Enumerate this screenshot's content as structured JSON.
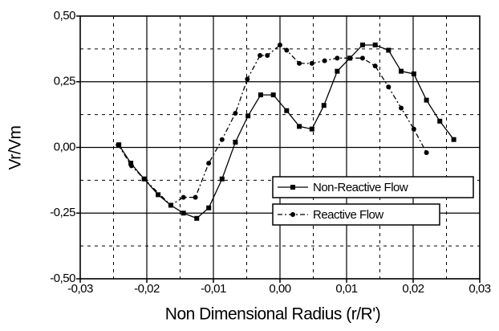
{
  "chart_data": {
    "type": "line",
    "xlabel": "Non Dimensional Radius (r/R')",
    "ylabel": "Vr/Vm",
    "xlim": [
      -0.03,
      0.03
    ],
    "ylim": [
      -0.5,
      0.5
    ],
    "xticks": [
      {
        "value": -0.03,
        "label": "-0,03"
      },
      {
        "value": -0.02,
        "label": "-0,02"
      },
      {
        "value": -0.01,
        "label": "-0,01"
      },
      {
        "value": 0,
        "label": "0,00"
      },
      {
        "value": 0.01,
        "label": "0,01"
      },
      {
        "value": 0.02,
        "label": "0,02"
      },
      {
        "value": 0.03,
        "label": "0,03"
      }
    ],
    "yticks": [
      {
        "value": -0.5,
        "label": "-0,50"
      },
      {
        "value": -0.25,
        "label": "-0,25"
      },
      {
        "value": 0,
        "label": "0,00"
      },
      {
        "value": 0.25,
        "label": "0,25"
      },
      {
        "value": 0.5,
        "label": "0,50"
      }
    ],
    "minor_xticks": [
      -0.025,
      -0.015,
      -0.005,
      0.005,
      0.015,
      0.025
    ],
    "minor_yticks": [
      -0.375,
      -0.125,
      0.125,
      0.375
    ],
    "grid": true,
    "series": [
      {
        "name": "Non-Reactive Flow",
        "color": "#000000",
        "marker": "square",
        "dash": "solid",
        "x": [
          -0.0242,
          -0.0224,
          -0.0204,
          -0.0183,
          -0.0164,
          -0.0145,
          -0.0125,
          -0.0107,
          -0.0087,
          -0.0067,
          -0.0048,
          -0.0029,
          -0.001,
          0.001,
          0.0029,
          0.0048,
          0.0066,
          0.0086,
          0.0105,
          0.0124,
          0.0143,
          0.0163,
          0.0182,
          0.0201,
          0.022,
          0.024,
          0.0261
        ],
        "values": [
          0.01,
          -0.06,
          -0.12,
          -0.18,
          -0.22,
          -0.25,
          -0.27,
          -0.23,
          -0.12,
          0.02,
          0.12,
          0.2,
          0.2,
          0.14,
          0.08,
          0.07,
          0.16,
          0.29,
          0.34,
          0.39,
          0.39,
          0.37,
          0.29,
          0.28,
          0.18,
          0.1,
          0.03
        ]
      },
      {
        "name": "Reactive Flow",
        "color": "#000000",
        "marker": "circle",
        "dash": "dashdot",
        "x": [
          -0.0243,
          -0.0223,
          -0.0204,
          -0.0164,
          -0.0145,
          -0.0127,
          -0.0107,
          -0.0087,
          -0.0067,
          -0.0049,
          -0.003,
          -0.0019,
          0,
          0.001,
          0.0029,
          0.0048,
          0.0067,
          0.0086,
          0.0105,
          0.0124,
          0.0143,
          0.0163,
          0.0182,
          0.0201,
          0.022
        ],
        "values": [
          0.01,
          -0.07,
          -0.12,
          -0.22,
          -0.19,
          -0.19,
          -0.06,
          0.03,
          0.13,
          0.26,
          0.35,
          0.35,
          0.39,
          0.37,
          0.32,
          0.32,
          0.33,
          0.34,
          0.34,
          0.34,
          0.31,
          0.23,
          0.15,
          0.07,
          -0.02
        ]
      }
    ]
  }
}
